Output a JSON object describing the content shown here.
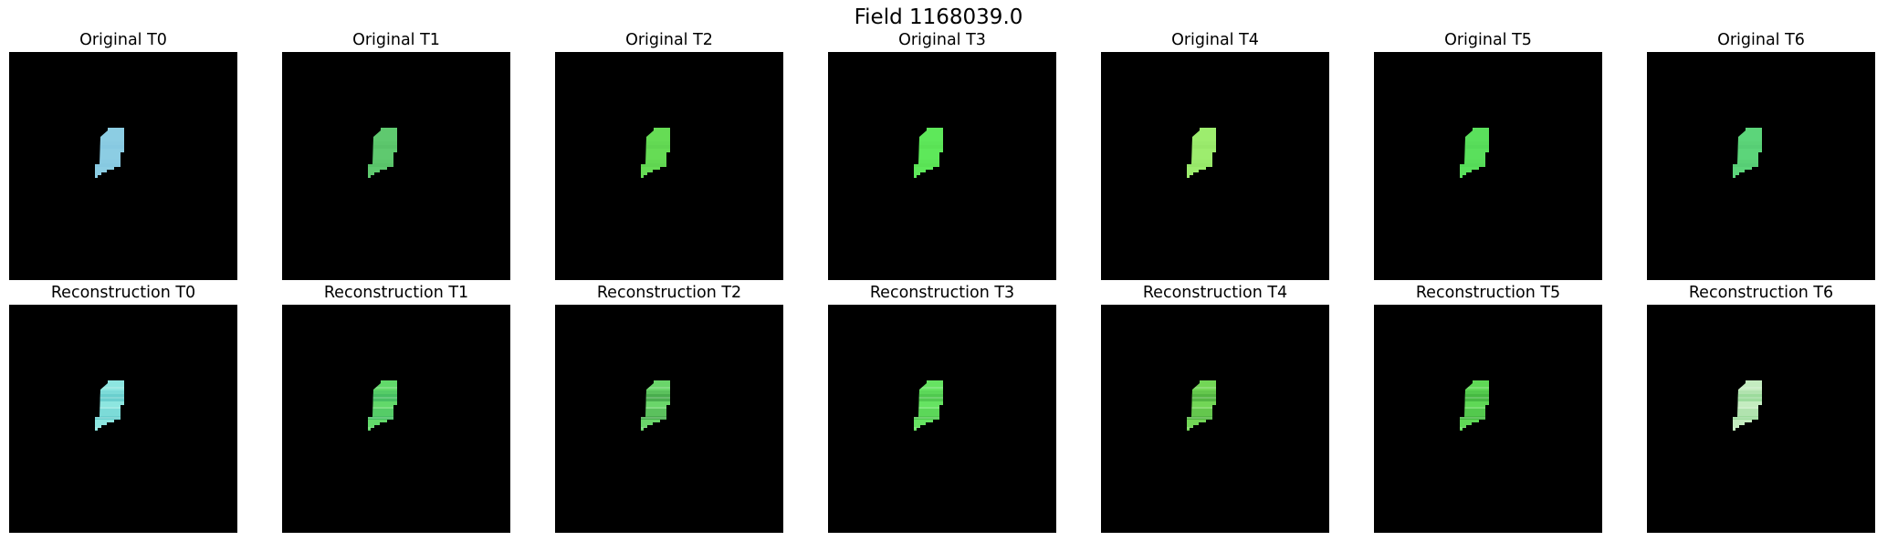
{
  "figure": {
    "title": "Field 1168039.0"
  },
  "rows": [
    {
      "name": "original",
      "panels": [
        {
          "title": "Original T0",
          "fill": "#8ccde3",
          "texture": "#7fc4dc",
          "textured": false
        },
        {
          "title": "Original T1",
          "fill": "#5fc96f",
          "texture": "#4fb55f",
          "textured": false
        },
        {
          "title": "Original T2",
          "fill": "#66dc55",
          "texture": "#55c84a",
          "textured": false
        },
        {
          "title": "Original T3",
          "fill": "#5ee85a",
          "texture": "#52d64e",
          "textured": false
        },
        {
          "title": "Original T4",
          "fill": "#9ded6e",
          "texture": "#8ddd62",
          "textured": false
        },
        {
          "title": "Original T5",
          "fill": "#5ae05c",
          "texture": "#4ecd50",
          "textured": false
        },
        {
          "title": "Original T6",
          "fill": "#5cd57a",
          "texture": "#4ec46c",
          "textured": false
        }
      ]
    },
    {
      "name": "reconstruction",
      "panels": [
        {
          "title": "Reconstruction T0",
          "fill": "#8de6e0",
          "texture": "#5fc7c8",
          "textured": true
        },
        {
          "title": "Reconstruction T1",
          "fill": "#62d96a",
          "texture": "#3fb560",
          "textured": true
        },
        {
          "title": "Reconstruction T2",
          "fill": "#6ad56a",
          "texture": "#3f9f45",
          "textured": true
        },
        {
          "title": "Reconstruction T3",
          "fill": "#66e362",
          "texture": "#4ac04a",
          "textured": true
        },
        {
          "title": "Reconstruction T4",
          "fill": "#72d656",
          "texture": "#4aab3c",
          "textured": true
        },
        {
          "title": "Reconstruction T5",
          "fill": "#5fd856",
          "texture": "#3eb03c",
          "textured": true
        },
        {
          "title": "Reconstruction T6",
          "fill": "#c4ecc0",
          "texture": "#8fd590",
          "textured": true
        }
      ]
    }
  ]
}
